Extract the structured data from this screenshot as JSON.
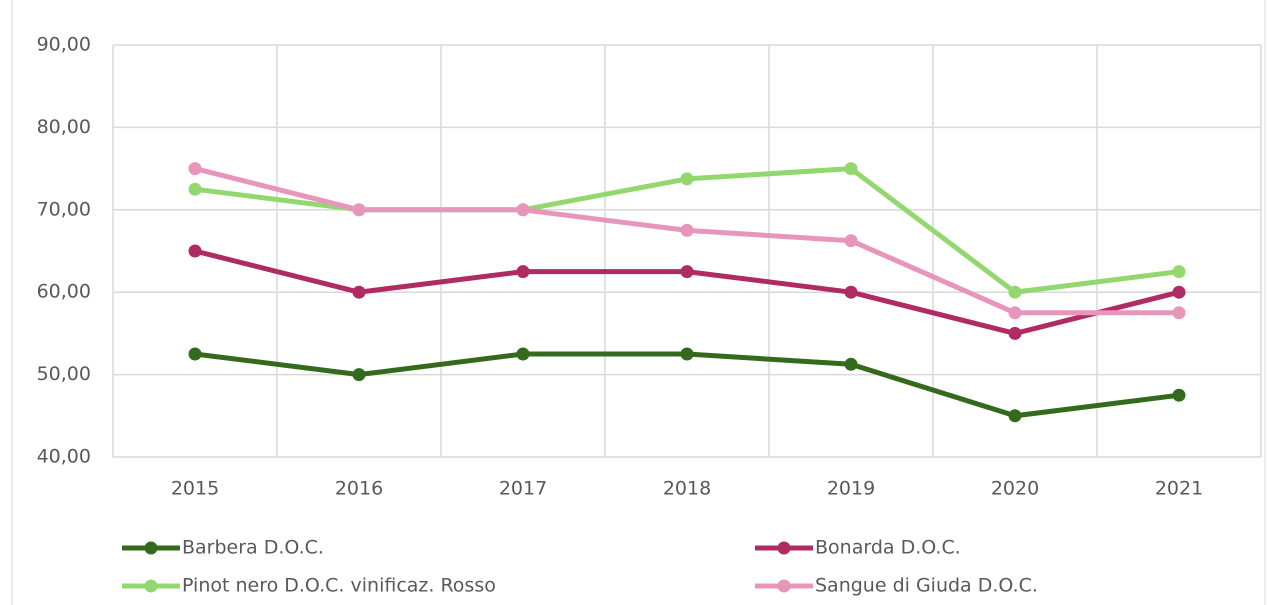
{
  "chart_data": {
    "type": "line",
    "categories": [
      "2015",
      "2016",
      "2017",
      "2018",
      "2019",
      "2020",
      "2021"
    ],
    "series": [
      {
        "name": "Barbera D.O.C.",
        "color": "#336a1c",
        "values": [
          52.5,
          50,
          52.5,
          52.5,
          51.25,
          45,
          47.5
        ]
      },
      {
        "name": "Bonarda D.O.C.",
        "color": "#b02a63",
        "values": [
          65,
          60,
          62.5,
          62.5,
          60,
          55,
          60
        ]
      },
      {
        "name": "Pinot nero D.O.C. vinificaz. Rosso",
        "color": "#92d86f",
        "values": [
          72.5,
          70,
          70,
          73.75,
          75,
          60,
          62.5
        ]
      },
      {
        "name": "Sangue di Giuda D.O.C.",
        "color": "#e895bb",
        "values": [
          75,
          70,
          70,
          67.5,
          66.25,
          57.5,
          57.5
        ]
      }
    ],
    "ylim": [
      40,
      90
    ],
    "yticks": [
      {
        "value": 40,
        "label": "40,00"
      },
      {
        "value": 50,
        "label": "50,00"
      },
      {
        "value": 60,
        "label": "60,00"
      },
      {
        "value": 70,
        "label": "70,00"
      },
      {
        "value": 80,
        "label": "80,00"
      },
      {
        "value": 90,
        "label": "90,00"
      }
    ],
    "grid": true,
    "legend": "bottom"
  }
}
